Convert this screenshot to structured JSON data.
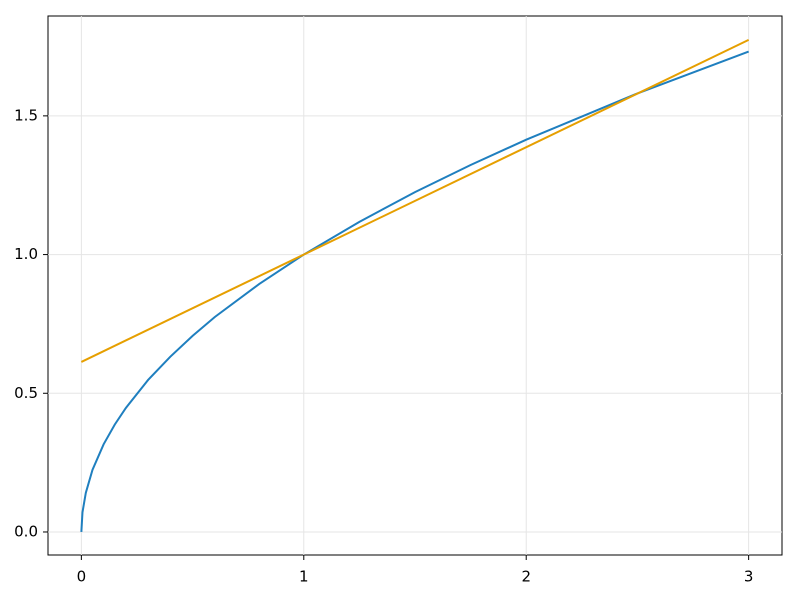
{
  "chart_data": {
    "type": "line",
    "xlim": [
      -0.15,
      3.15
    ],
    "ylim": [
      -0.083,
      1.86
    ],
    "xticks": [
      0,
      1,
      2,
      3
    ],
    "yticks": [
      {
        "value": 0,
        "label": "0.0"
      },
      {
        "value": 0.5,
        "label": "0.5"
      },
      {
        "value": 1,
        "label": "1.0"
      },
      {
        "value": 1.5,
        "label": "1.5"
      }
    ],
    "grid": true,
    "series": [
      {
        "color": "#1f7fbf",
        "x": [
          0,
          0.005,
          0.02,
          0.05,
          0.1,
          0.15,
          0.2,
          0.3,
          0.4,
          0.5,
          0.6,
          0.8,
          1,
          1.25,
          1.5,
          1.75,
          2,
          2.5,
          3
        ],
        "values": [
          0,
          0.071,
          0.141,
          0.224,
          0.316,
          0.387,
          0.447,
          0.548,
          0.632,
          0.707,
          0.775,
          0.894,
          1,
          1.118,
          1.225,
          1.323,
          1.414,
          1.581,
          1.732
        ]
      },
      {
        "color": "#e69f00",
        "x": [
          0,
          3
        ],
        "values": [
          0.613,
          1.774
        ]
      }
    ]
  }
}
